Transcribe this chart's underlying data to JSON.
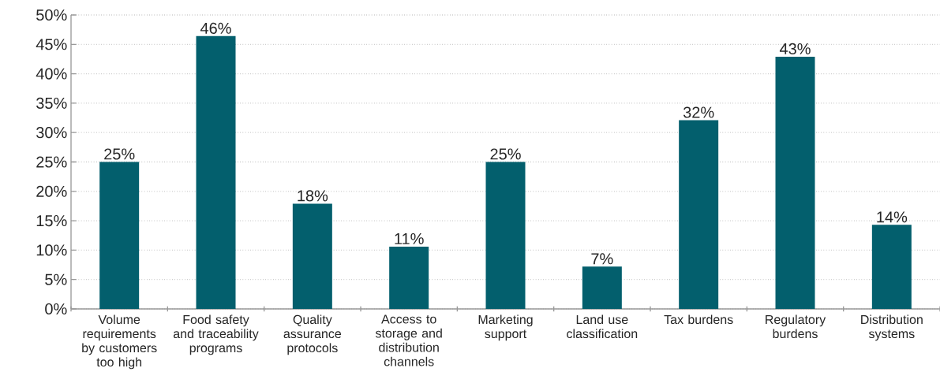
{
  "chart_data": {
    "type": "bar",
    "categories": [
      "Volume requirements by customers too high",
      "Food safety and traceability programs",
      "Quality assurance protocols",
      "Access to storage and distribution channels",
      "Marketing support",
      "Land use classification",
      "Tax burdens",
      "Regulatory burdens",
      "Distribution systems"
    ],
    "values": [
      25,
      46.4,
      17.9,
      10.6,
      25,
      7.2,
      32.1,
      42.9,
      14.3
    ],
    "value_labels": [
      "25%",
      "46%",
      "18%",
      "11%",
      "25%",
      "7%",
      "32%",
      "43%",
      "14%"
    ],
    "color": "#035f6d",
    "ylim": [
      0,
      50
    ],
    "yticks": [
      {
        "value": 0,
        "label": "0%"
      },
      {
        "value": 5,
        "label": "5%"
      },
      {
        "value": 10,
        "label": "10%"
      },
      {
        "value": 15,
        "label": "15%"
      },
      {
        "value": 20,
        "label": "20%"
      },
      {
        "value": 25,
        "label": "25%"
      },
      {
        "value": 30,
        "label": "30%"
      },
      {
        "value": 35,
        "label": "35%"
      },
      {
        "value": 40,
        "label": "40%"
      },
      {
        "value": 45,
        "label": "45%"
      },
      {
        "value": 50,
        "label": "50%"
      }
    ],
    "grid": "y"
  }
}
